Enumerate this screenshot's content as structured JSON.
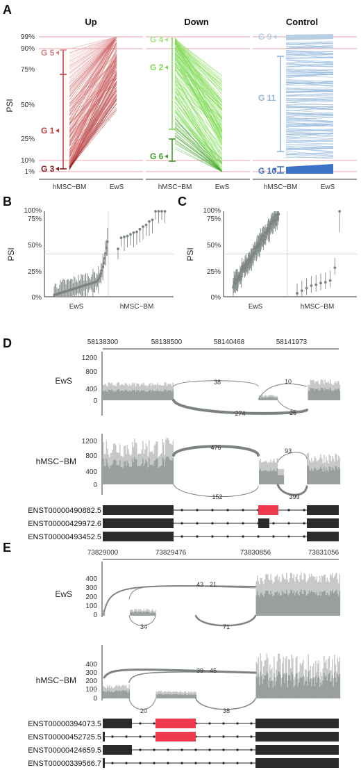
{
  "panels": {
    "A": "A",
    "B": "B",
    "C": "C",
    "D": "D",
    "E": "E"
  },
  "panel_a": {
    "ylabel": "PSI",
    "yticks": [
      "1%",
      "10%",
      "25%",
      "50%",
      "75%",
      "90%",
      "99%"
    ],
    "ytick_values": [
      1,
      10,
      25,
      50,
      75,
      90,
      99
    ],
    "xticks": [
      "hMSC−BM",
      "EwS"
    ],
    "facets": [
      {
        "title": "Up",
        "color": "#c84b4b",
        "groups": [
          {
            "label": "G 5",
            "color": "#d9858a"
          },
          {
            "label": "G 1",
            "color": "#c43e3e"
          },
          {
            "label": "G 3",
            "color": "#8b1a1a"
          }
        ]
      },
      {
        "title": "Down",
        "color": "#7ed957",
        "groups": [
          {
            "label": "G 4",
            "color": "#a6e27a"
          },
          {
            "label": "G 2",
            "color": "#7ed957"
          },
          {
            "label": "G 6",
            "color": "#3f9e2b"
          }
        ]
      },
      {
        "title": "Control",
        "color": "#94b8dc",
        "groups": [
          {
            "label": "G 9",
            "color": "#b9cde3"
          },
          {
            "label": "G 11",
            "color": "#8fb4dc"
          },
          {
            "label": "G 10",
            "color": "#3d73c4"
          }
        ]
      }
    ]
  },
  "panel_b": {
    "ylabel": "PSI",
    "yticks": [
      "0%",
      "25%",
      "50%",
      "75%",
      "100%"
    ],
    "xticks": [
      "EwS",
      "hMSC−BM"
    ]
  },
  "panel_c": {
    "ylabel": "PSI",
    "yticks": [
      "0%",
      "25%",
      "50%",
      "75%",
      "100%"
    ],
    "xticks": [
      "EwS",
      "hMSC−BM"
    ]
  },
  "panel_d": {
    "coords": [
      "58138300",
      "58138500",
      "58140468",
      "58141973"
    ],
    "tracks": [
      {
        "label": "EwS",
        "yticks": [
          "0",
          "400",
          "800",
          "1200"
        ],
        "junctions": [
          "38",
          "10",
          "274",
          "26"
        ]
      },
      {
        "label": "hMSC−BM",
        "yticks": [
          "0",
          "400",
          "800",
          "1200"
        ],
        "junctions": [
          "476",
          "93",
          "152",
          "399"
        ]
      }
    ],
    "transcripts": [
      "ENST00000490882.5",
      "ENST00000429972.6",
      "ENST00000493452.5"
    ]
  },
  "panel_e": {
    "coords": [
      "73829000",
      "73829476",
      "73830856",
      "73831056"
    ],
    "tracks": [
      {
        "label": "EwS",
        "yticks": [
          "0",
          "100",
          "200",
          "300",
          "400"
        ],
        "junctions": [
          "43",
          "21",
          "34",
          "71"
        ]
      },
      {
        "label": "hMSC−BM",
        "yticks": [
          "0",
          "100",
          "200",
          "300",
          "400"
        ],
        "junctions": [
          "39",
          "45",
          "20",
          "38"
        ]
      }
    ],
    "transcripts": [
      "ENST00000394073.5",
      "ENST00000452725.5",
      "ENST00000424659.5",
      "ENST00000339566.7"
    ]
  },
  "colors": {
    "highlight": "#f0384f",
    "exon": "#2b2b2b",
    "coverage": "#8e9593",
    "sashimi": "#7b8280",
    "refline": "#e5a3a8"
  }
}
